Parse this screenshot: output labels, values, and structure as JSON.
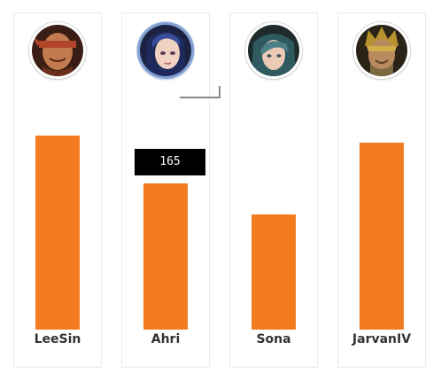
{
  "chart_data": {
    "type": "bar",
    "categories": [
      "LeeSin",
      "Ahri",
      "Sona",
      "JarvanIV"
    ],
    "values": [
      219,
      165,
      130,
      211
    ],
    "ylim": [
      0,
      220
    ],
    "grid": false,
    "bar_color": "#f47c20",
    "tooltip": {
      "category": "Ahri",
      "value": "165"
    }
  },
  "champions": [
    {
      "name": "LeeSin",
      "icon": "leesin-portrait-icon",
      "accent": "#b2462a"
    },
    {
      "name": "Ahri",
      "icon": "ahri-portrait-icon",
      "accent": "#3a4f9a"
    },
    {
      "name": "Sona",
      "icon": "sona-portrait-icon",
      "accent": "#4d7f86"
    },
    {
      "name": "JarvanIV",
      "icon": "jarvaniv-portrait-icon",
      "accent": "#b8922f"
    }
  ],
  "colors": {
    "column_border": "#ececec",
    "label": "#333333",
    "tooltip_bg": "#000000",
    "tooltip_text": "#ffffff",
    "selected_ring": "#7f9fd3"
  }
}
